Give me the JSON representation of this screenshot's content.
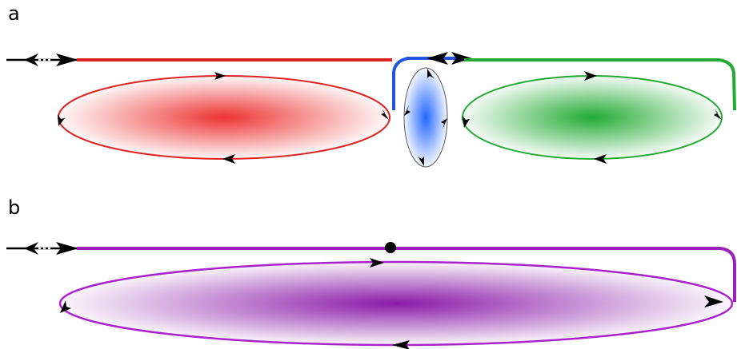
{
  "panels": [
    {
      "label": "a",
      "loops": [
        {
          "color": "#dd2222",
          "gradient": "grad-red"
        },
        {
          "color": "#2255dd",
          "gradient": "grad-blue"
        },
        {
          "color": "#22aa33",
          "gradient": "grad-green"
        }
      ]
    },
    {
      "label": "b",
      "loops": [
        {
          "color": "#9922bb",
          "gradient": "grad-purple"
        }
      ]
    }
  ],
  "colors": {
    "red": "#dd2222",
    "blue": "#2255dd",
    "green": "#22aa33",
    "purple": "#9922bb",
    "black": "#000000"
  }
}
